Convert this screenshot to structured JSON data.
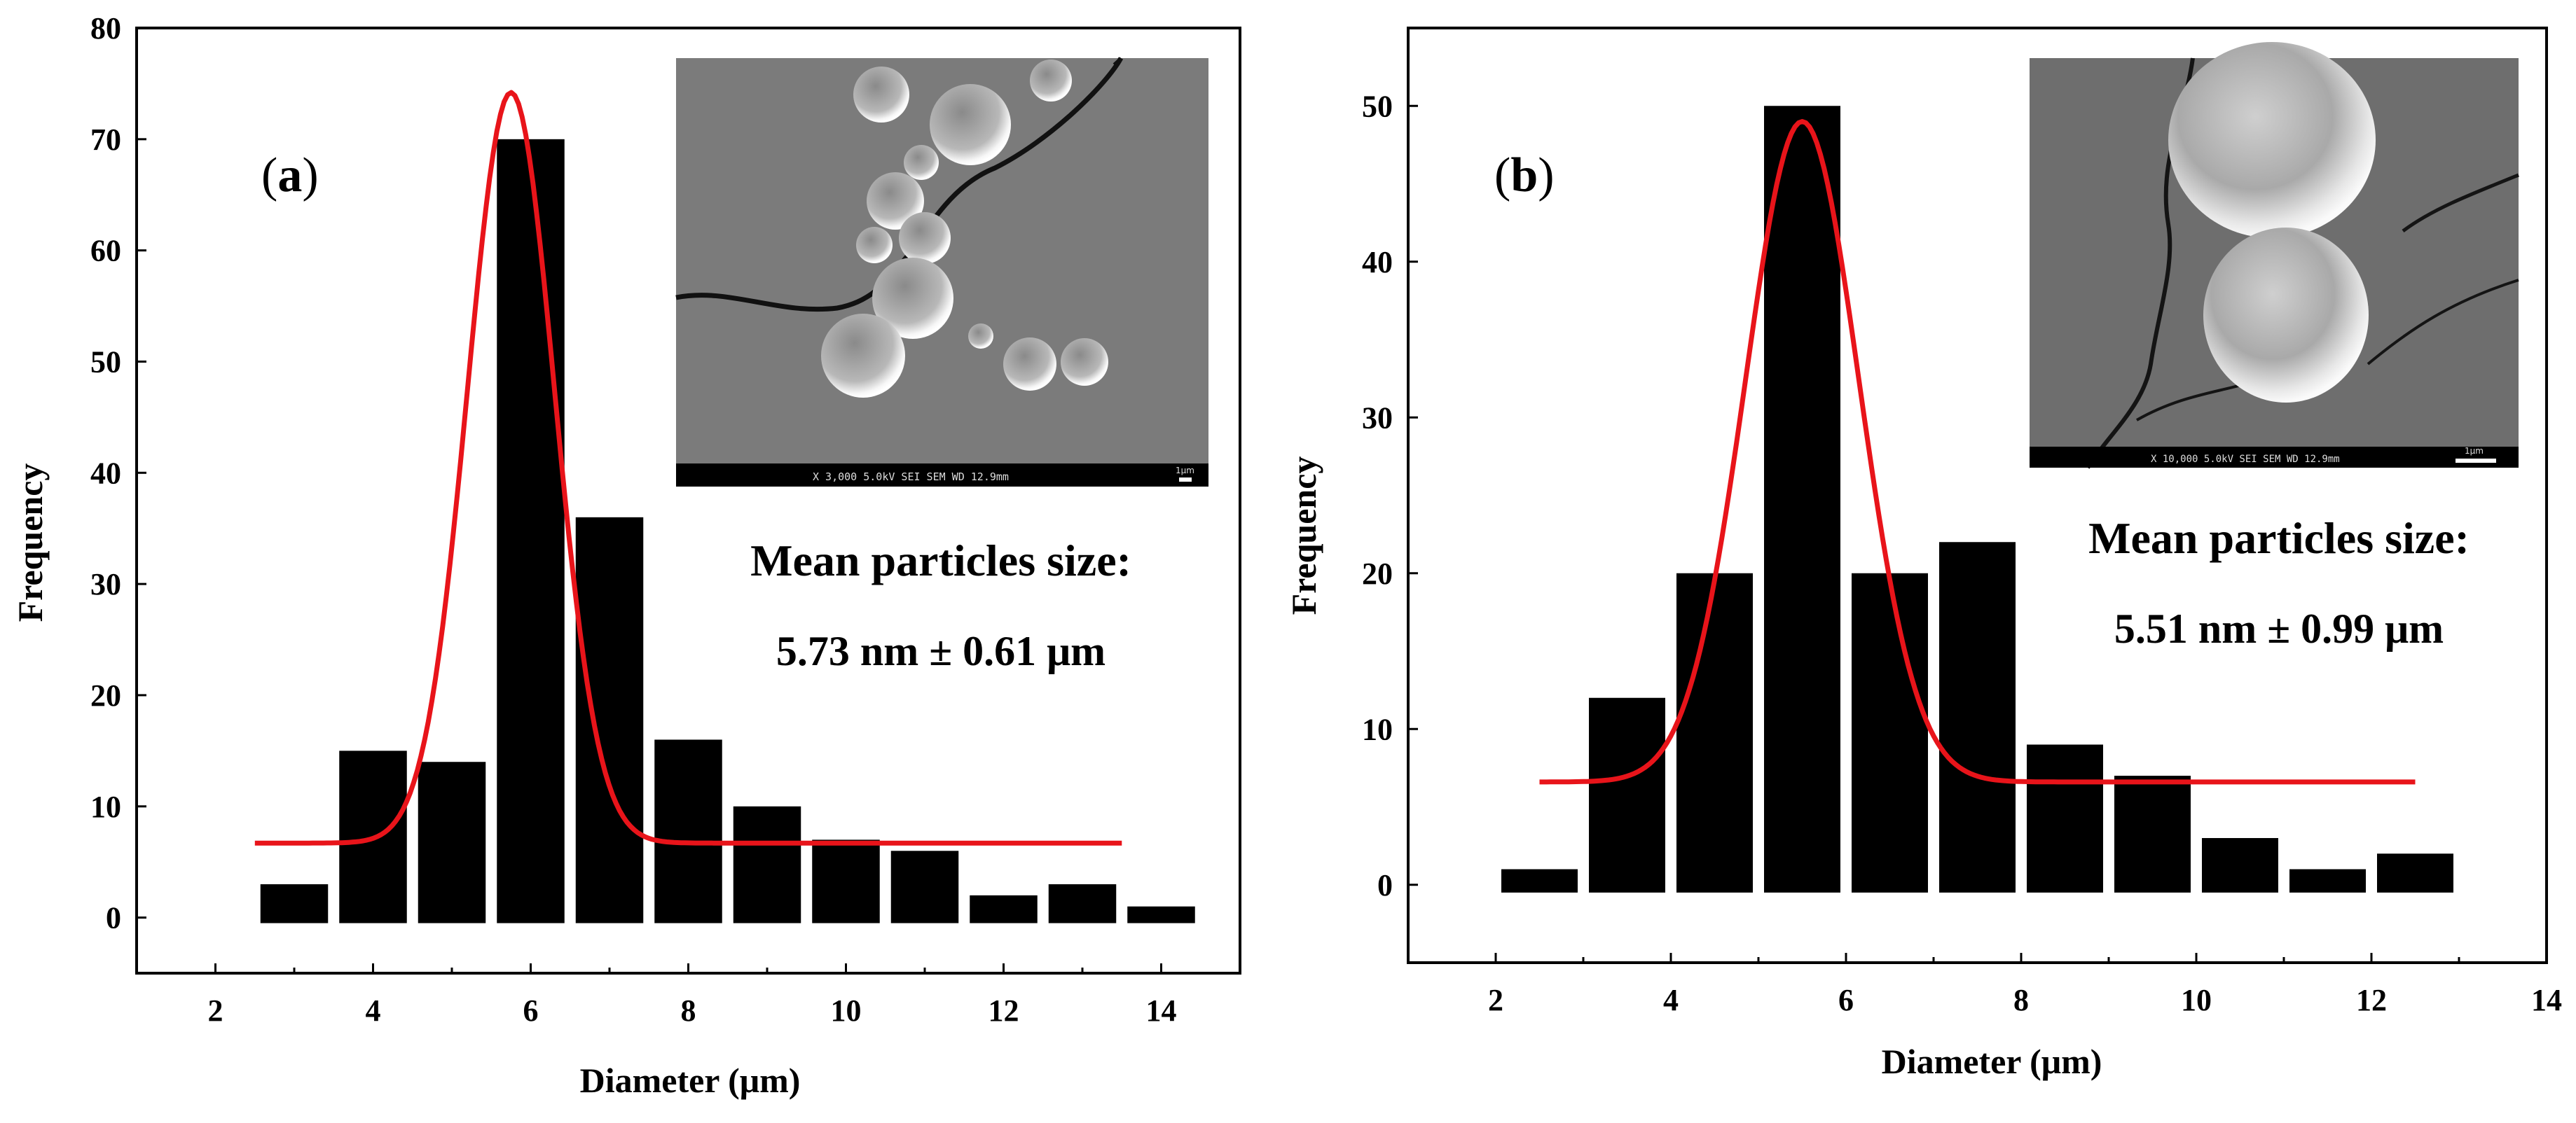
{
  "chart_data": [
    {
      "type": "bar",
      "panel_label": "(a)",
      "panel_letter": "a",
      "xlabel": "Diameter (μm)",
      "ylabel": "Frequency",
      "xlim": [
        1,
        15
      ],
      "ylim": [
        -5,
        80
      ],
      "x_ticks": [
        2,
        4,
        6,
        8,
        10,
        12,
        14
      ],
      "y_ticks": [
        0,
        10,
        20,
        30,
        40,
        50,
        60,
        70,
        80
      ],
      "bin_width": 1,
      "bar_centers": [
        3,
        4,
        5,
        6,
        7,
        8,
        9,
        10,
        11,
        12,
        13,
        14
      ],
      "values": [
        3,
        15,
        14,
        70,
        36,
        16,
        10,
        7,
        6,
        2,
        3,
        1
      ],
      "fit": {
        "type": "gaussian",
        "baseline": 6.7,
        "center": 5.75,
        "sigma": 0.55,
        "peak": 74.2,
        "x_range": [
          2.5,
          13.5
        ],
        "color": "#e8141a"
      },
      "annotation_line1": "Mean particles size:",
      "annotation_line2": "5.73 nm ± 0.61 μm",
      "inset_caption": "X 3,000    5.0kV   SEI      SEM      WD 12.9mm",
      "inset_scale": "1μm"
    },
    {
      "type": "bar",
      "panel_label": "(b)",
      "panel_letter": "b",
      "xlabel": "Diameter (μm)",
      "ylabel": "Frequency",
      "xlim": [
        1,
        14
      ],
      "ylim": [
        -5,
        55
      ],
      "x_ticks": [
        2,
        4,
        6,
        8,
        10,
        12,
        14
      ],
      "y_ticks": [
        0,
        10,
        20,
        30,
        40,
        50
      ],
      "bin_width": 1,
      "bar_centers": [
        2.5,
        3.5,
        4.5,
        5.5,
        6.5,
        7.5,
        8.5,
        9.5,
        10.5,
        11.5,
        12.5
      ],
      "values": [
        1,
        12,
        20,
        50,
        20,
        22,
        9,
        7,
        3,
        1,
        2
      ],
      "fit": {
        "type": "gaussian",
        "baseline": 6.6,
        "center": 5.5,
        "sigma": 0.65,
        "peak": 49,
        "x_range": [
          2.5,
          12.5
        ],
        "color": "#e8141a"
      },
      "annotation_line1": "Mean particles size:",
      "annotation_line2": "5.51 nm ± 0.99 μm",
      "inset_caption": "X 10,000    5.0kV   SEI     SEM      WD 12.9mm",
      "inset_scale": "1μm"
    }
  ]
}
